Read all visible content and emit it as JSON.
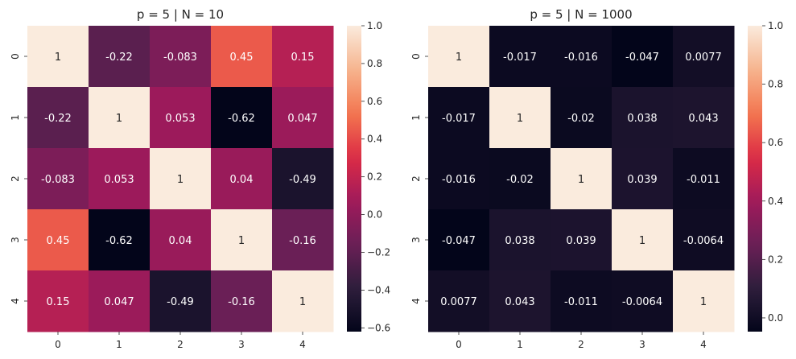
{
  "colors": {
    "rocket_stops": [
      "#03051a",
      "#2e1e3c",
      "#6b1f56",
      "#a11a5b",
      "#dd2c45",
      "#f3764f",
      "#f6b48e",
      "#faebdd"
    ],
    "text_dark": "#262626",
    "text_light": "#ffffff"
  },
  "chart_data": [
    {
      "type": "heatmap",
      "title": "p = 5 | N = 10",
      "x_labels": [
        "0",
        "1",
        "2",
        "3",
        "4"
      ],
      "y_labels": [
        "0",
        "1",
        "2",
        "3",
        "4"
      ],
      "values": [
        [
          1,
          -0.22,
          -0.083,
          0.45,
          0.15
        ],
        [
          -0.22,
          1,
          0.053,
          -0.62,
          0.047
        ],
        [
          -0.083,
          0.053,
          1,
          0.04,
          -0.49
        ],
        [
          0.45,
          -0.62,
          0.04,
          1,
          -0.16
        ],
        [
          0.15,
          0.047,
          -0.49,
          -0.16,
          1
        ]
      ],
      "annotations": [
        [
          "1",
          "-0.22",
          "-0.083",
          "0.45",
          "0.15"
        ],
        [
          "-0.22",
          "1",
          "0.053",
          "-0.62",
          "0.047"
        ],
        [
          "-0.083",
          "0.053",
          "1",
          "0.04",
          "-0.49"
        ],
        [
          "0.45",
          "-0.62",
          "0.04",
          "1",
          "-0.16"
        ],
        [
          "0.15",
          "0.047",
          "-0.49",
          "-0.16",
          "1"
        ]
      ],
      "vmin": -0.62,
      "vmax": 1,
      "colorbar_ticks": [
        -0.6,
        -0.4,
        -0.2,
        0.0,
        0.2,
        0.4,
        0.6,
        0.8,
        1.0
      ],
      "colorbar_tick_labels": [
        "−0.6",
        "−0.4",
        "−0.2",
        "0.0",
        "0.2",
        "0.4",
        "0.6",
        "0.8",
        "1.0"
      ],
      "colormap": "rocket"
    },
    {
      "type": "heatmap",
      "title": "p = 5 | N = 1000",
      "x_labels": [
        "0",
        "1",
        "2",
        "3",
        "4"
      ],
      "y_labels": [
        "0",
        "1",
        "2",
        "3",
        "4"
      ],
      "values": [
        [
          1,
          -0.017,
          -0.016,
          -0.047,
          0.0077
        ],
        [
          -0.017,
          1,
          -0.02,
          0.038,
          0.043
        ],
        [
          -0.016,
          -0.02,
          1,
          0.039,
          -0.011
        ],
        [
          -0.047,
          0.038,
          0.039,
          1,
          -0.0064
        ],
        [
          0.0077,
          0.043,
          -0.011,
          -0.0064,
          1
        ]
      ],
      "annotations": [
        [
          "1",
          "-0.017",
          "-0.016",
          "-0.047",
          "0.0077"
        ],
        [
          "-0.017",
          "1",
          "-0.02",
          "0.038",
          "0.043"
        ],
        [
          "-0.016",
          "-0.02",
          "1",
          "0.039",
          "-0.011"
        ],
        [
          "-0.047",
          "0.038",
          "0.039",
          "1",
          "-0.0064"
        ],
        [
          "0.0077",
          "0.043",
          "-0.011",
          "-0.0064",
          "1"
        ]
      ],
      "vmin": -0.047,
      "vmax": 1,
      "colorbar_ticks": [
        0.0,
        0.2,
        0.4,
        0.6,
        0.8,
        1.0
      ],
      "colorbar_tick_labels": [
        "0.0",
        "0.2",
        "0.4",
        "0.6",
        "0.8",
        "1.0"
      ],
      "colormap": "rocket"
    }
  ]
}
